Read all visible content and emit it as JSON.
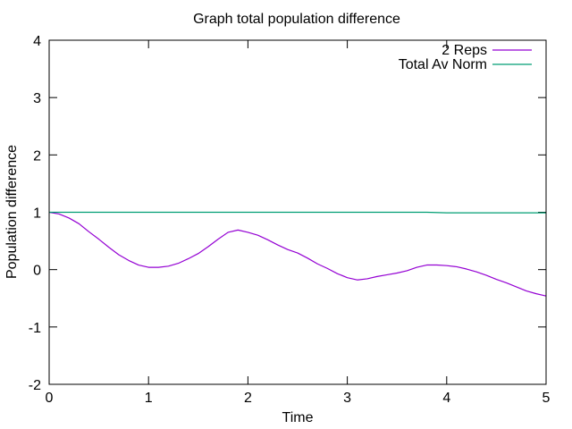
{
  "chart_data": {
    "type": "line",
    "title": "Graph total population difference",
    "xlabel": "Time",
    "ylabel": "Population difference",
    "xlim": [
      0,
      5
    ],
    "ylim": [
      -2,
      4
    ],
    "xticks": [
      0,
      1,
      2,
      3,
      4,
      5
    ],
    "yticks": [
      -2,
      -1,
      0,
      1,
      2,
      3,
      4
    ],
    "xtick_labels": [
      "0",
      "1",
      "2",
      "3",
      "4",
      "5"
    ],
    "ytick_labels": [
      "-2",
      "-1",
      "0",
      "1",
      "2",
      "3",
      "4"
    ],
    "grid": false,
    "legend_position": "top-right",
    "series": [
      {
        "name": "2 Reps",
        "color": "#9400d3",
        "x": [
          0,
          0.1,
          0.2,
          0.3,
          0.4,
          0.5,
          0.6,
          0.7,
          0.8,
          0.9,
          1.0,
          1.1,
          1.2,
          1.3,
          1.4,
          1.5,
          1.6,
          1.7,
          1.8,
          1.9,
          2.0,
          2.1,
          2.2,
          2.3,
          2.4,
          2.5,
          2.6,
          2.7,
          2.8,
          2.9,
          3.0,
          3.1,
          3.2,
          3.3,
          3.4,
          3.5,
          3.6,
          3.7,
          3.8,
          3.9,
          4.0,
          4.1,
          4.2,
          4.3,
          4.4,
          4.5,
          4.6,
          4.7,
          4.8,
          4.9,
          5.0
        ],
        "y": [
          1.0,
          0.97,
          0.9,
          0.8,
          0.66,
          0.53,
          0.39,
          0.26,
          0.16,
          0.08,
          0.04,
          0.04,
          0.06,
          0.11,
          0.19,
          0.28,
          0.4,
          0.53,
          0.65,
          0.69,
          0.65,
          0.6,
          0.52,
          0.43,
          0.35,
          0.29,
          0.2,
          0.1,
          0.02,
          -0.07,
          -0.14,
          -0.18,
          -0.16,
          -0.12,
          -0.09,
          -0.06,
          -0.02,
          0.04,
          0.08,
          0.08,
          0.07,
          0.05,
          0.01,
          -0.04,
          -0.1,
          -0.17,
          -0.23,
          -0.3,
          -0.37,
          -0.42,
          -0.46
        ]
      },
      {
        "name": "Total Av Norm",
        "color": "#009e73",
        "x": [
          0,
          1,
          2,
          3,
          3.5,
          3.8,
          4.0,
          4.5,
          5.0
        ],
        "y": [
          1.0,
          1.0,
          1.0,
          1.0,
          1.0,
          1.0,
          0.99,
          0.99,
          0.99
        ]
      }
    ]
  }
}
